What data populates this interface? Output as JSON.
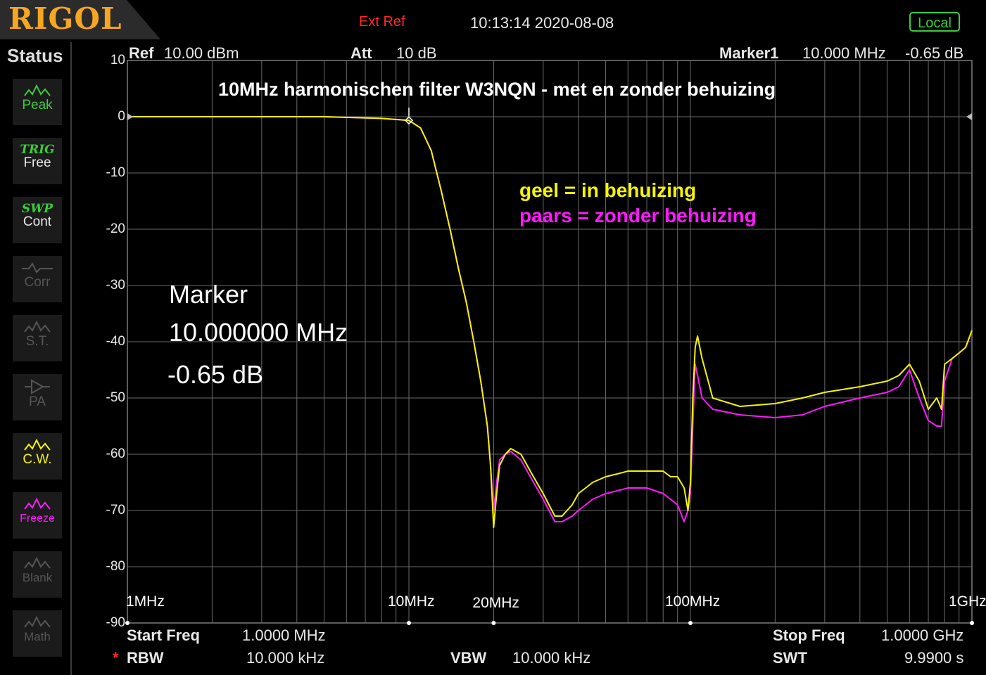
{
  "header": {
    "logo": "RIGOL",
    "ext_ref": "Ext Ref",
    "datetime": "10:13:14 2020-08-08",
    "local_button": "Local"
  },
  "sidebar": {
    "title": "Status",
    "items": [
      {
        "name": "peak",
        "top": "",
        "label": "Peak",
        "state": "active",
        "icon": "peak-waveform-icon"
      },
      {
        "name": "trig",
        "top": "TRIG",
        "label": "Free",
        "state": "active",
        "icon": ""
      },
      {
        "name": "swp",
        "top": "SWP",
        "label": "Cont",
        "state": "active",
        "icon": ""
      },
      {
        "name": "corr",
        "top": "",
        "label": "Corr",
        "state": "disabled",
        "icon": "correction-icon"
      },
      {
        "name": "st",
        "top": "",
        "label": "S.T.",
        "state": "disabled",
        "icon": "signal-tracking-icon"
      },
      {
        "name": "pa",
        "top": "",
        "label": "PA",
        "state": "disabled",
        "icon": "preamp-icon"
      },
      {
        "name": "cw",
        "top": "",
        "label": "C.W.",
        "state": "yellow",
        "icon": "clear-write-icon"
      },
      {
        "name": "freeze",
        "top": "",
        "label": "Freeze",
        "state": "magenta",
        "icon": "freeze-icon"
      },
      {
        "name": "blank",
        "top": "",
        "label": "Blank",
        "state": "disabled",
        "icon": "blank-icon"
      },
      {
        "name": "math",
        "top": "",
        "label": "Math",
        "state": "disabled",
        "icon": "math-icon"
      }
    ]
  },
  "info_bar": {
    "ref_label": "Ref",
    "ref_value": "10.00 dBm",
    "att_label": "Att",
    "att_value": "10 dB",
    "marker_label": "Marker1",
    "marker_freq": "10.000 MHz",
    "marker_level": "-0.65 dB"
  },
  "annotations": {
    "title": "10MHz harmonischen filter W3NQN -  met en zonder behuizing",
    "legend_yellow": "geel   = in behuizing",
    "legend_magenta": "paars = zonder behuizing",
    "marker_title": "Marker",
    "marker_freq": "10.000000 MHz",
    "marker_level": "-0.65 dB"
  },
  "chart_data": {
    "type": "line",
    "x_scale": "log",
    "xlim_mhz": [
      1,
      1000
    ],
    "ylim": [
      -90,
      10
    ],
    "y_ticks": [
      "10",
      "0",
      "-10",
      "-20",
      "-30",
      "-40",
      "-50",
      "-60",
      "-70",
      "-80",
      "-90"
    ],
    "x_tick_labels": [
      {
        "mhz": 1,
        "label": "1MHz"
      },
      {
        "mhz": 10,
        "label": "10MHz"
      },
      {
        "mhz": 20,
        "label": "20MHz"
      },
      {
        "mhz": 100,
        "label": "100MHz"
      },
      {
        "mhz": 1000,
        "label": "1GHz"
      }
    ],
    "grid": true,
    "series": [
      {
        "color": "#f5f500",
        "x_mhz": [
          1,
          5,
          8,
          10,
          11,
          12,
          13,
          14,
          15,
          16,
          17,
          18,
          19,
          19.5,
          20,
          20.5,
          21,
          22,
          23,
          25,
          27,
          30,
          33,
          35,
          38,
          40,
          45,
          50,
          55,
          60,
          65,
          70,
          75,
          80,
          85,
          90,
          95,
          98,
          100,
          102,
          104,
          106,
          110,
          120,
          150,
          200,
          250,
          300,
          400,
          500,
          550,
          600,
          650,
          700,
          750,
          780,
          800,
          850,
          900,
          950,
          1000
        ],
        "values": [
          0,
          0,
          -0.3,
          -0.65,
          -2,
          -6,
          -13,
          -20,
          -27,
          -33,
          -40,
          -47,
          -55,
          -62,
          -73,
          -67,
          -62,
          -60,
          -59,
          -60,
          -63,
          -67,
          -71,
          -71,
          -69,
          -67,
          -65,
          -64,
          -63.5,
          -63,
          -63,
          -63,
          -63,
          -63,
          -64,
          -64,
          -66,
          -70,
          -65,
          -50,
          -41,
          -39,
          -43,
          -50,
          -51.5,
          -51,
          -50,
          -49,
          -48,
          -47,
          -46,
          -44,
          -47,
          -52,
          -50,
          -52,
          -44,
          -43,
          -42,
          -41,
          -38
        ]
      },
      {
        "color": "#ff1aff",
        "x_mhz": [
          1,
          5,
          8,
          10,
          11,
          12,
          13,
          14,
          15,
          16,
          17,
          18,
          19,
          19.5,
          20,
          20.5,
          21,
          22,
          23,
          25,
          27,
          30,
          33,
          35,
          38,
          40,
          45,
          50,
          55,
          60,
          65,
          70,
          75,
          80,
          85,
          90,
          95,
          98,
          100,
          102,
          104,
          106,
          110,
          120,
          150,
          200,
          250,
          300,
          400,
          500,
          550,
          600,
          650,
          700,
          750,
          780,
          800,
          850,
          900,
          950,
          1000
        ],
        "values": [
          0,
          0,
          -0.3,
          -0.65,
          -2,
          -6,
          -13,
          -20,
          -27,
          -33,
          -40,
          -47,
          -55,
          -62,
          -70,
          -65,
          -61,
          -60,
          -59.5,
          -61,
          -64,
          -68,
          -72,
          -72,
          -71,
          -70,
          -68,
          -67,
          -66.5,
          -66,
          -66,
          -66,
          -66.5,
          -67,
          -68,
          -69,
          -72,
          -70,
          -67,
          -55,
          -44,
          -46,
          -50,
          -52,
          -53,
          -53.5,
          -53,
          -51.5,
          -50,
          -49,
          -48,
          -45,
          -50,
          -54,
          -55,
          -55,
          -47,
          -43,
          -42,
          -41,
          -38
        ]
      }
    ]
  },
  "bottom_bar": {
    "start_freq_label": "Start Freq",
    "start_freq_value": "1.0000 MHz",
    "stop_freq_label": "Stop Freq",
    "stop_freq_value": "1.0000 GHz",
    "rbw_star": "*",
    "rbw_label": "RBW",
    "rbw_value": "10.000 kHz",
    "vbw_label": "VBW",
    "vbw_value": "10.000 kHz",
    "swt_label": "SWT",
    "swt_value": "9.9900 s"
  }
}
